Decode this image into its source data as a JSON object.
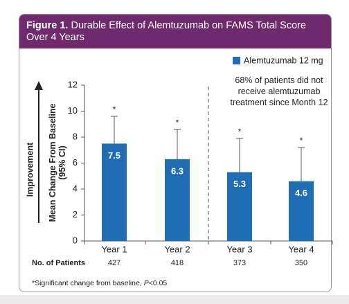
{
  "chart_data": {
    "type": "bar",
    "figure_label": "Figure 1.",
    "title": "Durable Effect of Alemtuzumab on FAMS Total Score Over 4 Years",
    "categories": [
      "Year 1",
      "Year 2",
      "Year 3",
      "Year 4"
    ],
    "series": [
      {
        "name": "Alemtuzumab 12 mg",
        "color": "#1f6db5",
        "values": [
          7.5,
          6.3,
          5.3,
          4.6
        ],
        "errors": [
          2.1,
          2.3,
          2.6,
          2.6
        ]
      }
    ],
    "significance": [
      "*",
      "*",
      "*",
      "*"
    ],
    "ylim": [
      0,
      12
    ],
    "yticks": [
      0,
      2,
      4,
      6,
      8,
      10,
      12
    ],
    "ylabel": [
      "Mean Change From Baseline",
      "(95% CI)"
    ],
    "direction_label": "Improvement",
    "annotation": [
      "68% of patients did not",
      "receive alemtuzumab",
      "treatment since Month 12"
    ],
    "patients_label": "No. of Patients",
    "patients": [
      427,
      418,
      373,
      350
    ],
    "footnote": [
      "*Significant change from baseline, ",
      "P",
      "<0.05"
    ]
  }
}
